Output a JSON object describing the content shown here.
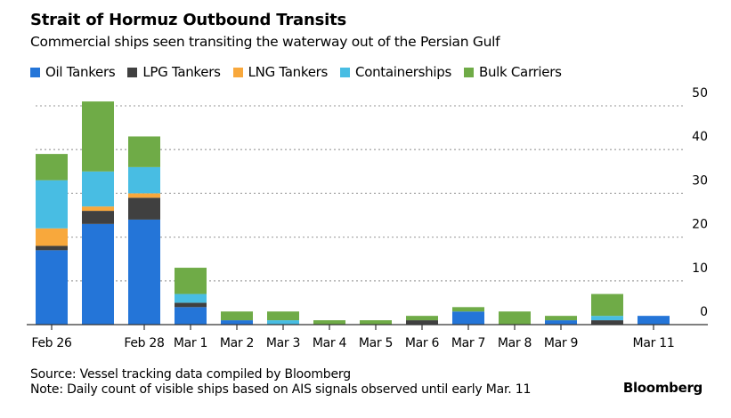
{
  "chart_data": {
    "type": "bar",
    "stacked": true,
    "title": "Strait of Hormuz Outbound Transits",
    "subtitle": "Commercial ships seen transiting the waterway out of the Persian Gulf",
    "categories": [
      "Feb 26",
      "Feb 27",
      "Feb 28",
      "Mar 1",
      "Mar 2",
      "Mar 3",
      "Mar 4",
      "Mar 5",
      "Mar 6",
      "Mar 7",
      "Mar 8",
      "Mar 9",
      "Mar 10",
      "Mar 11"
    ],
    "tick_labels": [
      "Feb 26",
      "",
      "Feb 28",
      "Mar 1",
      "Mar 2",
      "Mar 3",
      "Mar 4",
      "Mar 5",
      "Mar 6",
      "Mar 7",
      "Mar 8",
      "Mar 9",
      "",
      "Mar 11"
    ],
    "series": [
      {
        "name": "Oil Tankers",
        "color": "#2475d8",
        "values": [
          17,
          23,
          24,
          4,
          1,
          0,
          0,
          0,
          0,
          3,
          0,
          1,
          0,
          2
        ]
      },
      {
        "name": "LPG Tankers",
        "color": "#404040",
        "values": [
          1,
          3,
          5,
          1,
          0,
          0,
          0,
          0,
          1,
          0,
          0,
          0,
          1,
          0
        ]
      },
      {
        "name": "LNG Tankers",
        "color": "#f8a83c",
        "values": [
          4,
          1,
          1,
          0,
          0,
          0,
          0,
          0,
          0,
          0,
          0,
          0,
          0,
          0
        ]
      },
      {
        "name": "Containerships",
        "color": "#48bde3",
        "values": [
          11,
          8,
          6,
          2,
          0,
          1,
          0,
          0,
          0,
          0,
          0,
          0,
          1,
          0
        ]
      },
      {
        "name": "Bulk Carriers",
        "color": "#6fab47",
        "values": [
          6,
          16,
          7,
          6,
          2,
          2,
          1,
          1,
          1,
          1,
          3,
          1,
          5,
          0
        ]
      }
    ],
    "ylim": [
      0,
      50
    ],
    "yticks": [
      0,
      10,
      20,
      30,
      40,
      50
    ],
    "y_axis_side": "right",
    "grid": true,
    "legend_placement": "top-left"
  },
  "footer": {
    "source": "Source: Vessel tracking data compiled by Bloomberg",
    "note": "Note: Daily count of visible ships based on AIS signals observed until early Mar. 11",
    "logo": "Bloomberg"
  }
}
